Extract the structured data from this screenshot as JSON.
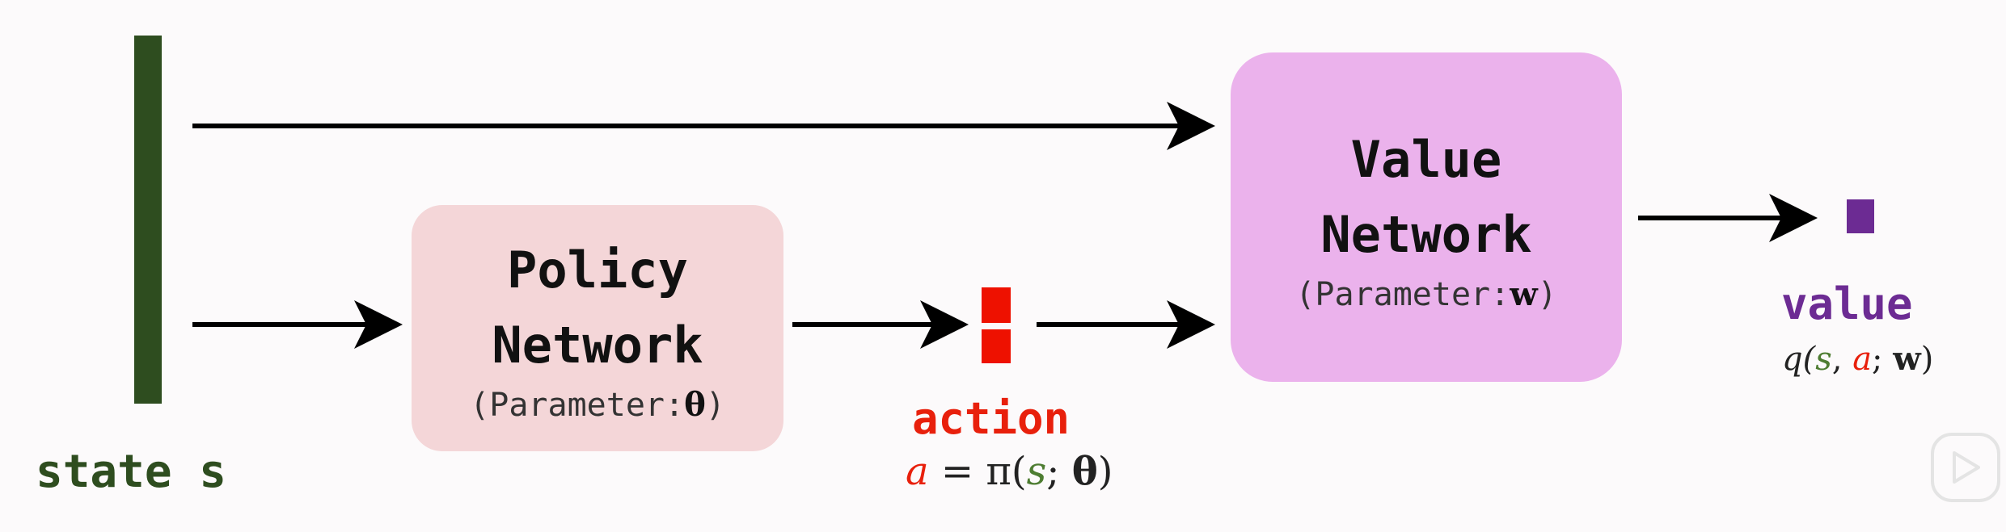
{
  "state": {
    "label": "state s"
  },
  "policy_network": {
    "title": "Policy\nNetwork",
    "param_prefix": "(Parameter:",
    "param_symbol": "θ",
    "param_suffix": ")"
  },
  "value_network": {
    "title": "Value\nNetwork",
    "param_prefix": "(Parameter:",
    "param_symbol": "w",
    "param_suffix": ")"
  },
  "action": {
    "label": "action",
    "formula": {
      "a": "a",
      "eq": " = π(",
      "s": "s",
      "sep": "; ",
      "theta": "θ",
      "close": ")"
    }
  },
  "value": {
    "label": "value",
    "formula": {
      "q": "q(",
      "s": "s",
      "comma": ", ",
      "a": "a",
      "sep": "; ",
      "w": "w",
      "close": ")"
    }
  },
  "colors": {
    "state": "#2e4d1f",
    "action": "#e8200c",
    "value": "#6c2b93",
    "policy_box": "#f4d6d8",
    "value_box": "#ebb2ec"
  },
  "icons": {
    "play": "play-icon"
  }
}
